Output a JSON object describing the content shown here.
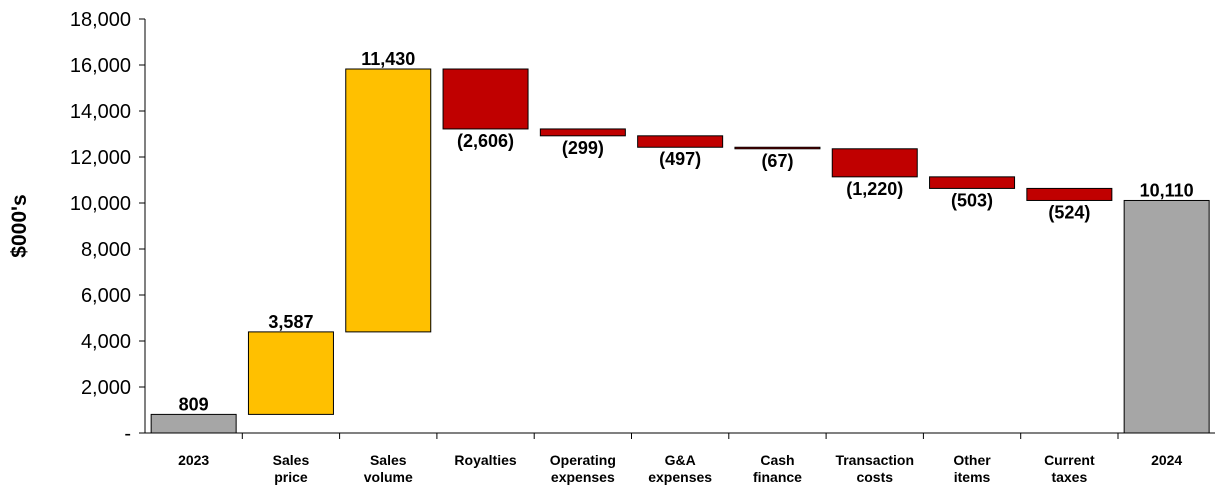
{
  "chart_data": {
    "type": "bar",
    "subtype": "waterfall",
    "title": "",
    "xlabel": "",
    "ylabel": "$000's",
    "ylim": [
      0,
      18000
    ],
    "yticks": [
      0,
      2000,
      4000,
      6000,
      8000,
      10000,
      12000,
      14000,
      16000,
      18000
    ],
    "ytick_labels": [
      "-",
      "2,000",
      "4,000",
      "6,000",
      "8,000",
      "10,000",
      "12,000",
      "14,000",
      "16,000",
      "18,000"
    ],
    "grid": false,
    "legend": "none",
    "colors": {
      "total": "#a6a6a6",
      "increase": "#ffc000",
      "decrease": "#c00000"
    },
    "bars": [
      {
        "category": "2023",
        "category_lines": [
          "2023"
        ],
        "kind": "total",
        "start": 0,
        "end": 809,
        "label": "809"
      },
      {
        "category": "Sales price",
        "category_lines": [
          "Sales",
          "price"
        ],
        "kind": "increase",
        "start": 809,
        "end": 4396,
        "label": "3,587"
      },
      {
        "category": "Sales volume",
        "category_lines": [
          "Sales",
          "volume"
        ],
        "kind": "increase",
        "start": 4396,
        "end": 15826,
        "label": "11,430"
      },
      {
        "category": "Royalties",
        "category_lines": [
          "Royalties"
        ],
        "kind": "decrease",
        "start": 15826,
        "end": 13220,
        "label": "(2,606)"
      },
      {
        "category": "Operating expenses",
        "category_lines": [
          "Operating",
          "expenses"
        ],
        "kind": "decrease",
        "start": 13220,
        "end": 12921,
        "label": "(299)"
      },
      {
        "category": "G&A expenses",
        "category_lines": [
          "G&A",
          "expenses"
        ],
        "kind": "decrease",
        "start": 12921,
        "end": 12424,
        "label": "(497)"
      },
      {
        "category": "Cash finance",
        "category_lines": [
          "Cash",
          "finance"
        ],
        "kind": "decrease",
        "start": 12424,
        "end": 12357,
        "label": "(67)"
      },
      {
        "category": "Transaction costs",
        "category_lines": [
          "Transaction",
          "costs"
        ],
        "kind": "decrease",
        "start": 12357,
        "end": 11137,
        "label": "(1,220)"
      },
      {
        "category": "Other items",
        "category_lines": [
          "Other",
          "items"
        ],
        "kind": "decrease",
        "start": 11137,
        "end": 10634,
        "label": "(503)"
      },
      {
        "category": "Current taxes",
        "category_lines": [
          "Current",
          "taxes"
        ],
        "kind": "decrease",
        "start": 10634,
        "end": 10110,
        "label": "(524)"
      },
      {
        "category": "2024",
        "category_lines": [
          "2024"
        ],
        "kind": "total",
        "start": 0,
        "end": 10110,
        "label": "10,110"
      }
    ]
  }
}
